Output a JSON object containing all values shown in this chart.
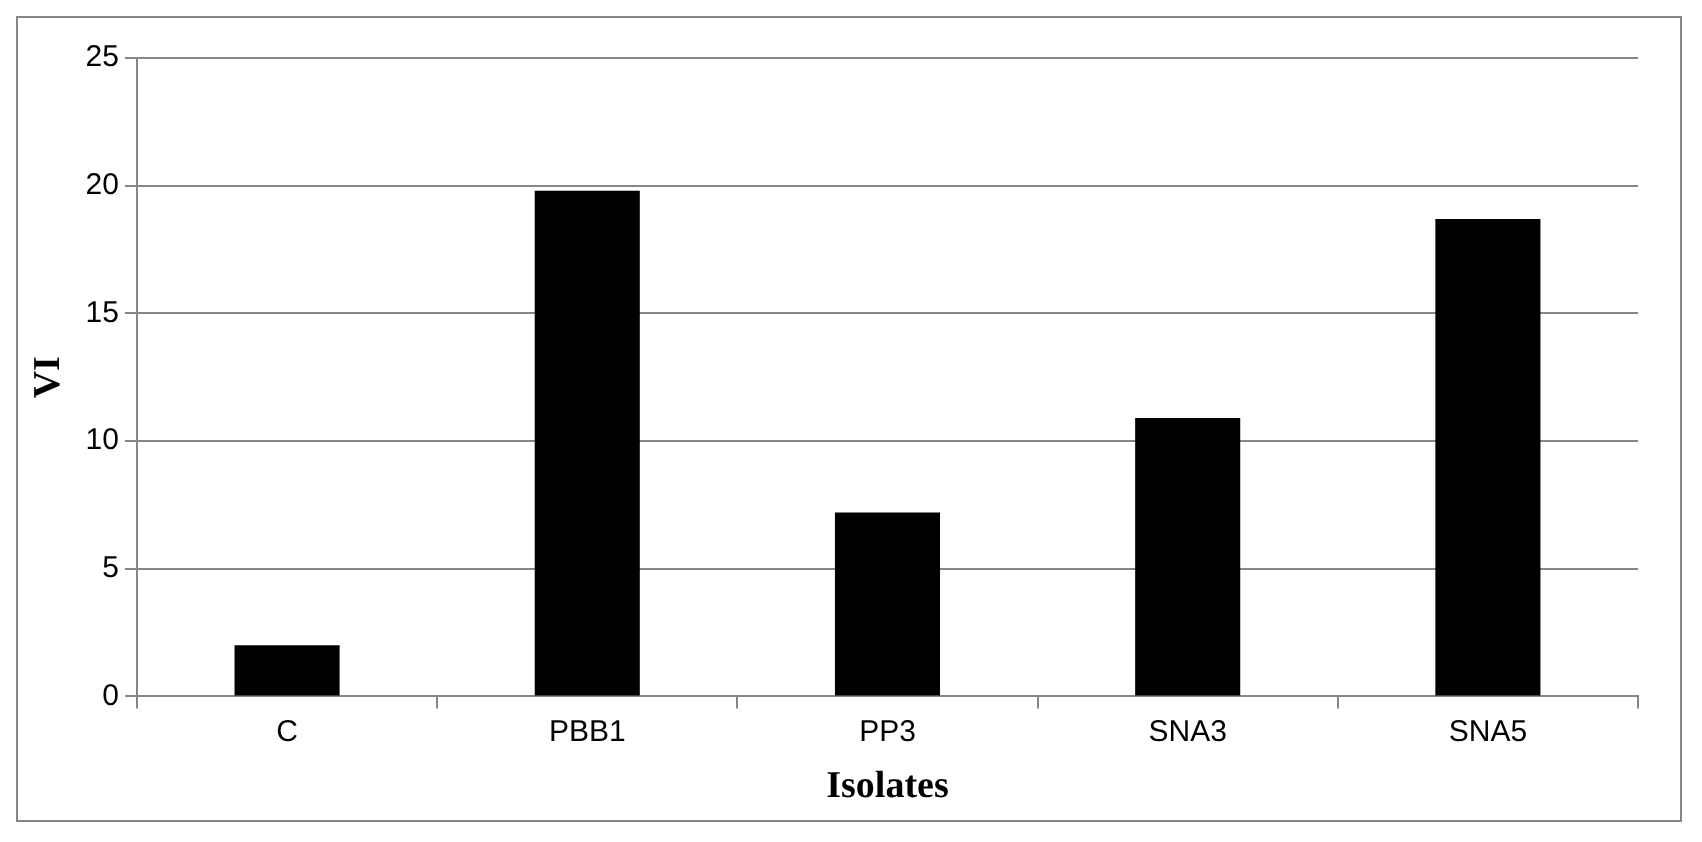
{
  "chart_data": {
    "type": "bar",
    "xlabel": "Isolates",
    "ylabel": "VI",
    "categories": [
      "C",
      "PBB1",
      "PP3",
      "SNA3",
      "SNA5"
    ],
    "values": [
      2,
      19.8,
      7.2,
      10.9,
      18.7
    ],
    "color": "#000000",
    "ylim": [
      0,
      25
    ],
    "yticks": [
      0,
      5,
      10,
      15,
      20,
      25
    ],
    "grid": "y"
  }
}
